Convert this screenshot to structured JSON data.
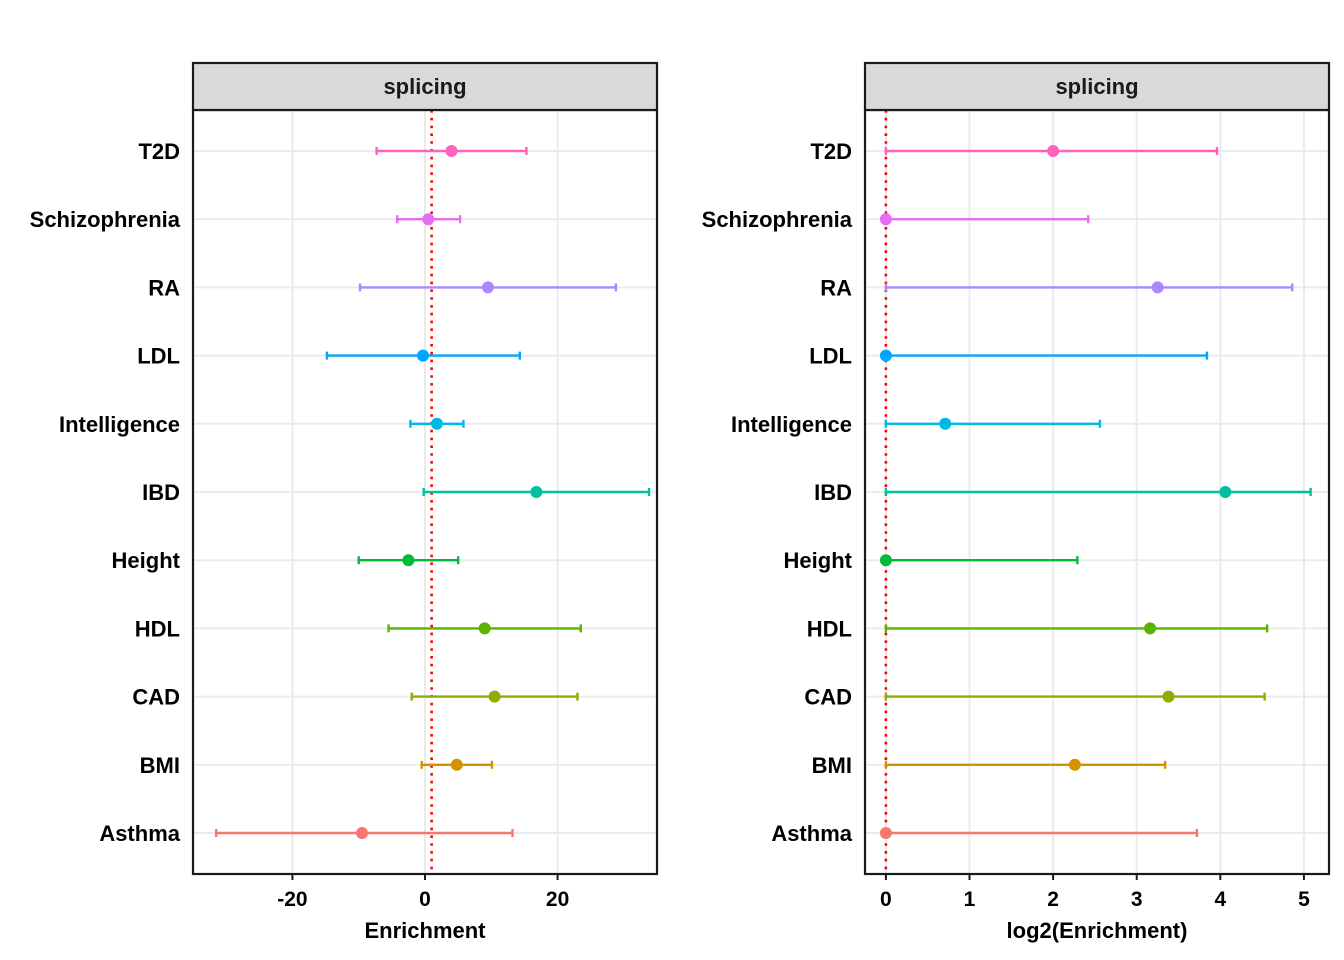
{
  "chart_data": [
    {
      "type": "scatter",
      "panel": "left",
      "strip_label": "splicing",
      "xlabel": "Enrichment",
      "ylabel": "",
      "xlim": [
        -35,
        35
      ],
      "xticks": [
        -20,
        0,
        20
      ],
      "xtick_labels": [
        "-20",
        "0",
        "20"
      ],
      "reference_line": 1,
      "grid": true,
      "categories": [
        "Asthma",
        "BMI",
        "CAD",
        "HDL",
        "Height",
        "IBD",
        "Intelligence",
        "LDL",
        "RA",
        "Schizophrenia",
        "T2D"
      ],
      "points": [
        {
          "category": "Asthma",
          "estimate": -9.5,
          "lower": -31.5,
          "upper": 13.2,
          "color": "#F8766D"
        },
        {
          "category": "BMI",
          "estimate": 4.8,
          "lower": -0.5,
          "upper": 10.1,
          "color": "#D39200"
        },
        {
          "category": "CAD",
          "estimate": 10.5,
          "lower": -2.0,
          "upper": 23.0,
          "color": "#93AA00"
        },
        {
          "category": "HDL",
          "estimate": 9.0,
          "lower": -5.5,
          "upper": 23.5,
          "color": "#5BB300"
        },
        {
          "category": "Height",
          "estimate": -2.5,
          "lower": -10.0,
          "upper": 5.0,
          "color": "#00BA38"
        },
        {
          "category": "IBD",
          "estimate": 16.8,
          "lower": -0.2,
          "upper": 33.8,
          "color": "#00C19F"
        },
        {
          "category": "Intelligence",
          "estimate": 1.8,
          "lower": -2.2,
          "upper": 5.8,
          "color": "#00B9E3"
        },
        {
          "category": "LDL",
          "estimate": -0.3,
          "lower": -14.8,
          "upper": 14.3,
          "color": "#00A5FF"
        },
        {
          "category": "RA",
          "estimate": 9.5,
          "lower": -9.8,
          "upper": 28.8,
          "color": "#AE87FF"
        },
        {
          "category": "Schizophrenia",
          "estimate": 0.5,
          "lower": -4.2,
          "upper": 5.3,
          "color": "#E76BF3"
        },
        {
          "category": "T2D",
          "estimate": 4.0,
          "lower": -7.3,
          "upper": 15.3,
          "color": "#FF62BC"
        }
      ]
    },
    {
      "type": "scatter",
      "panel": "right",
      "strip_label": "splicing",
      "xlabel": "log2(Enrichment)",
      "ylabel": "",
      "xlim": [
        -0.25,
        5.3
      ],
      "xticks": [
        0,
        1,
        2,
        3,
        4,
        5
      ],
      "xtick_labels": [
        "0",
        "1",
        "2",
        "3",
        "4",
        "5"
      ],
      "reference_line": 0,
      "grid": true,
      "categories": [
        "Asthma",
        "BMI",
        "CAD",
        "HDL",
        "Height",
        "IBD",
        "Intelligence",
        "LDL",
        "RA",
        "Schizophrenia",
        "T2D"
      ],
      "points": [
        {
          "category": "Asthma",
          "estimate": 0.0,
          "lower": 0.0,
          "upper": 3.72,
          "color": "#F8766D"
        },
        {
          "category": "BMI",
          "estimate": 2.26,
          "lower": 0.0,
          "upper": 3.34,
          "color": "#D39200"
        },
        {
          "category": "CAD",
          "estimate": 3.38,
          "lower": 0.0,
          "upper": 4.53,
          "color": "#93AA00"
        },
        {
          "category": "HDL",
          "estimate": 3.16,
          "lower": 0.0,
          "upper": 4.56,
          "color": "#5BB300"
        },
        {
          "category": "Height",
          "estimate": 0.0,
          "lower": 0.0,
          "upper": 2.29,
          "color": "#00BA38"
        },
        {
          "category": "IBD",
          "estimate": 4.06,
          "lower": 0.0,
          "upper": 5.08,
          "color": "#00C19F"
        },
        {
          "category": "Intelligence",
          "estimate": 0.71,
          "lower": 0.0,
          "upper": 2.56,
          "color": "#00B9E3"
        },
        {
          "category": "LDL",
          "estimate": 0.0,
          "lower": 0.0,
          "upper": 3.84,
          "color": "#00A5FF"
        },
        {
          "category": "RA",
          "estimate": 3.25,
          "lower": 0.0,
          "upper": 4.86,
          "color": "#AE87FF"
        },
        {
          "category": "Schizophrenia",
          "estimate": 0.0,
          "lower": 0.0,
          "upper": 2.42,
          "color": "#E76BF3"
        },
        {
          "category": "T2D",
          "estimate": 2.0,
          "lower": 0.0,
          "upper": 3.96,
          "color": "#FF62BC"
        }
      ]
    }
  ]
}
